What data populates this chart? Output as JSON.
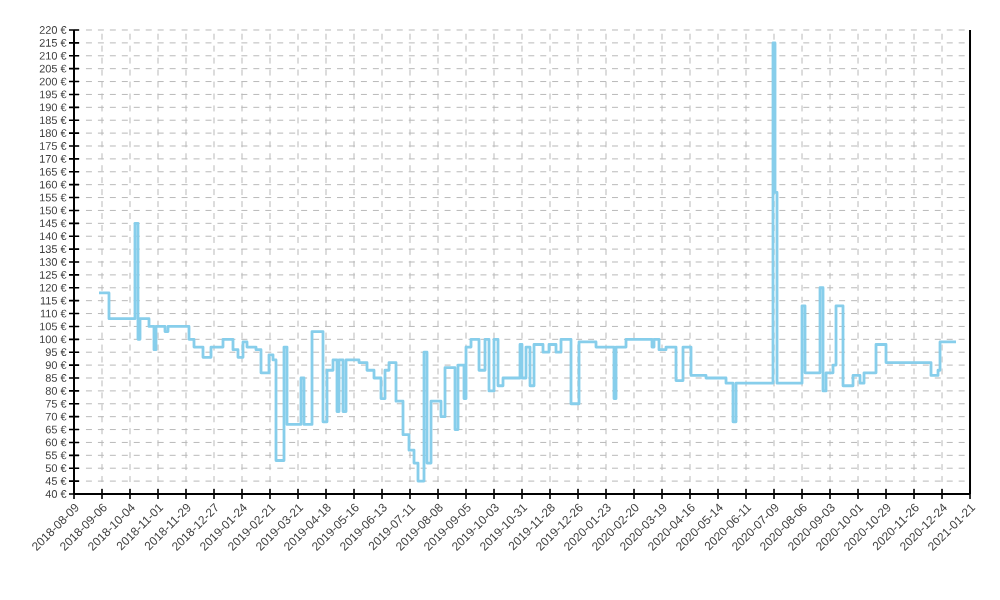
{
  "chart_data": {
    "type": "step",
    "color": "#87ceeb",
    "grid": true,
    "xlim": [
      "2018-08-09",
      "2021-01-21"
    ],
    "xticks": [
      "2018-08-09",
      "2018-09-06",
      "2018-10-04",
      "2018-11-01",
      "2018-11-29",
      "2018-12-27",
      "2019-01-24",
      "2019-02-21",
      "2019-03-21",
      "2019-04-18",
      "2019-05-16",
      "2019-06-13",
      "2019-07-11",
      "2019-08-08",
      "2019-09-05",
      "2019-10-03",
      "2019-10-31",
      "2019-11-28",
      "2019-12-26",
      "2020-01-23",
      "2020-02-20",
      "2020-03-19",
      "2020-04-16",
      "2020-05-14",
      "2020-06-11",
      "2020-07-09",
      "2020-08-06",
      "2020-09-03",
      "2020-10-01",
      "2020-10-29",
      "2020-11-26",
      "2020-12-24",
      "2021-01-21"
    ],
    "ylim": [
      40,
      220
    ],
    "yticks": [
      {
        "value": 40,
        "label": "40 €"
      },
      {
        "value": 45,
        "label": "45 €"
      },
      {
        "value": 50,
        "label": "50 €"
      },
      {
        "value": 55,
        "label": "55 €"
      },
      {
        "value": 60,
        "label": "60 €"
      },
      {
        "value": 65,
        "label": "65 €"
      },
      {
        "value": 70,
        "label": "70 €"
      },
      {
        "value": 75,
        "label": "75 €"
      },
      {
        "value": 80,
        "label": "80 €"
      },
      {
        "value": 85,
        "label": "85 €"
      },
      {
        "value": 90,
        "label": "90 €"
      },
      {
        "value": 95,
        "label": "95 €"
      },
      {
        "value": 100,
        "label": "100 €"
      },
      {
        "value": 105,
        "label": "105 €"
      },
      {
        "value": 110,
        "label": "110 €"
      },
      {
        "value": 115,
        "label": "115 €"
      },
      {
        "value": 120,
        "label": "120 €"
      },
      {
        "value": 125,
        "label": "125 €"
      },
      {
        "value": 130,
        "label": "130 €"
      },
      {
        "value": 135,
        "label": "135 €"
      },
      {
        "value": 140,
        "label": "140 €"
      },
      {
        "value": 145,
        "label": "145 €"
      },
      {
        "value": 150,
        "label": "150 €"
      },
      {
        "value": 155,
        "label": "155 €"
      },
      {
        "value": 160,
        "label": "160 €"
      },
      {
        "value": 165,
        "label": "165 €"
      },
      {
        "value": 170,
        "label": "170 €"
      },
      {
        "value": 175,
        "label": "175 €"
      },
      {
        "value": 180,
        "label": "180 €"
      },
      {
        "value": 185,
        "label": "185 €"
      },
      {
        "value": 190,
        "label": "190 €"
      },
      {
        "value": 195,
        "label": "195 €"
      },
      {
        "value": 200,
        "label": "200 €"
      },
      {
        "value": 205,
        "label": "205 €"
      },
      {
        "value": 210,
        "label": "210 €"
      },
      {
        "value": 215,
        "label": "215 €"
      },
      {
        "value": 220,
        "label": "220 €"
      }
    ],
    "x": [
      "2018-09-03",
      "2018-09-13",
      "2018-10-09",
      "2018-10-12",
      "2018-10-14",
      "2018-10-23",
      "2018-10-28",
      "2018-10-30",
      "2018-11-08",
      "2018-11-11",
      "2018-12-02",
      "2018-12-07",
      "2018-12-16",
      "2018-12-24",
      "2019-01-05",
      "2019-01-15",
      "2019-01-20",
      "2019-01-25",
      "2019-01-29",
      "2019-02-07",
      "2019-02-12",
      "2019-02-20",
      "2019-02-24",
      "2019-02-27",
      "2019-03-07",
      "2019-03-10",
      "2019-03-24",
      "2019-03-27",
      "2019-04-04",
      "2019-04-15",
      "2019-04-19",
      "2019-04-25",
      "2019-04-29",
      "2019-05-01",
      "2019-05-05",
      "2019-05-08",
      "2019-05-21",
      "2019-05-29",
      "2019-06-05",
      "2019-06-12",
      "2019-06-16",
      "2019-06-20",
      "2019-06-27",
      "2019-07-04",
      "2019-07-10",
      "2019-07-15",
      "2019-07-19",
      "2019-07-25",
      "2019-07-28",
      "2019-08-01",
      "2019-08-11",
      "2019-08-15",
      "2019-08-25",
      "2019-08-28",
      "2019-09-03",
      "2019-09-05",
      "2019-09-10",
      "2019-09-18",
      "2019-09-24",
      "2019-09-28",
      "2019-10-03",
      "2019-10-07",
      "2019-10-12",
      "2019-10-29",
      "2019-10-31",
      "2019-11-04",
      "2019-11-08",
      "2019-11-12",
      "2019-11-21",
      "2019-11-27",
      "2019-12-04",
      "2019-12-09",
      "2019-12-19",
      "2019-12-27",
      "2020-01-13",
      "2020-01-31",
      "2020-02-02",
      "2020-02-12",
      "2020-03-09",
      "2020-03-11",
      "2020-03-16",
      "2020-03-23",
      "2020-04-02",
      "2020-04-09",
      "2020-04-17",
      "2020-05-02",
      "2020-05-22",
      "2020-05-29",
      "2020-06-01",
      "2020-07-08",
      "2020-07-10",
      "2020-07-12",
      "2020-08-06",
      "2020-08-09",
      "2020-08-24",
      "2020-08-27",
      "2020-08-30",
      "2020-09-06",
      "2020-09-09",
      "2020-09-16",
      "2020-09-26",
      "2020-10-03",
      "2020-10-07",
      "2020-10-19",
      "2020-10-29",
      "2020-12-13",
      "2020-12-20",
      "2020-12-22",
      "2021-01-07"
    ],
    "values": [
      118,
      108,
      145,
      100,
      108,
      105,
      96,
      105,
      103,
      105,
      100,
      97,
      93,
      97,
      100,
      96,
      93,
      99,
      97,
      96,
      87,
      94,
      92,
      53,
      97,
      67,
      85,
      67,
      103,
      68,
      88,
      92,
      72,
      92,
      72,
      92,
      91,
      88,
      85,
      77,
      88,
      91,
      76,
      63,
      57,
      52,
      45,
      95,
      52,
      76,
      70,
      89,
      65,
      90,
      77,
      97,
      100,
      88,
      100,
      80,
      100,
      82,
      85,
      98,
      85,
      97,
      82,
      98,
      95,
      98,
      95,
      100,
      75,
      99,
      97,
      77,
      97,
      100,
      97,
      100,
      96,
      97,
      84,
      97,
      86,
      85,
      83,
      68,
      83,
      215,
      157,
      83,
      113,
      87,
      120,
      80,
      87,
      90,
      113,
      82,
      86,
      83,
      87,
      98,
      91,
      86,
      88,
      99,
      99
    ]
  }
}
